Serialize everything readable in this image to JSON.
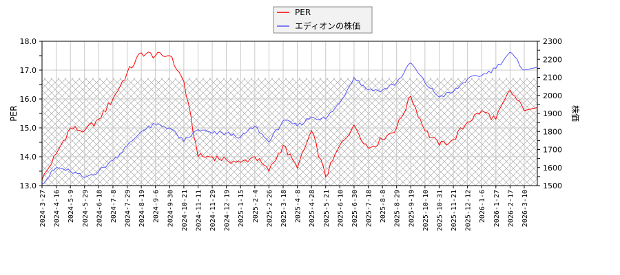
{
  "legend": {
    "items": [
      {
        "label": "PER",
        "color": "#ff0000"
      },
      {
        "label": "エディオンの株価",
        "color": "#5555ff"
      }
    ]
  },
  "axes": {
    "left": {
      "title": "PER",
      "ticks": [
        "13.0",
        "14.0",
        "15.0",
        "16.0",
        "17.0",
        "18.0"
      ]
    },
    "right": {
      "title": "株価",
      "ticks": [
        "1500",
        "1600",
        "1700",
        "1800",
        "1900",
        "2000",
        "2100",
        "2200",
        "2300"
      ]
    }
  },
  "chart_data": {
    "type": "line",
    "title": "",
    "xlabel": "",
    "ylabel": "PER",
    "y2label": "株価",
    "ylim": [
      13.0,
      18.0
    ],
    "y2lim": [
      1500,
      2300
    ],
    "grid": true,
    "legend_position": "top-center",
    "shaded_band": {
      "axis": "left",
      "from": 13.0,
      "to": 16.72,
      "pattern": "crosshatch"
    },
    "categories": [
      "2024-3-27",
      "2024-4-16",
      "2024-5-9",
      "2024-5-29",
      "2024-6-18",
      "2024-7-8",
      "2024-7-29",
      "2024-8-19",
      "2024-9-6",
      "2024-9-30",
      "2024-10-21",
      "2024-11-11",
      "2024-11-29",
      "2024-12-19",
      "2025-1-15",
      "2025-2-4",
      "2025-2-26",
      "2025-3-18",
      "2025-4-8",
      "2025-4-28",
      "2025-5-21",
      "2025-6-10",
      "2025-6-30",
      "2025-7-18",
      "2025-8-8",
      "2025-8-29",
      "2025-9-19",
      "2025-10-10",
      "2025-10-31",
      "2025-11-21",
      "2025-12-12",
      "2026-1-6",
      "2026-1-27",
      "2026-2-17",
      "2026-3-10"
    ],
    "series": [
      {
        "name": "PER",
        "axis": "left",
        "color": "#ff0000",
        "values": [
          13.2,
          14.1,
          15.0,
          14.9,
          15.3,
          16.0,
          16.9,
          17.6,
          17.5,
          17.5,
          16.6,
          14.0,
          14.0,
          13.9,
          13.8,
          14.0,
          13.5,
          14.4,
          13.6,
          14.9,
          13.3,
          14.4,
          15.1,
          14.3,
          14.6,
          15.0,
          16.1,
          14.9,
          14.4,
          14.6,
          15.2,
          15.6,
          15.3,
          16.3,
          15.6
        ],
        "x": [
          0,
          1,
          2,
          3,
          4,
          5,
          6,
          7,
          8,
          9,
          10,
          11,
          12,
          13,
          14,
          15,
          16,
          17,
          18,
          19,
          20,
          21,
          22,
          23,
          24,
          25,
          26,
          27,
          28,
          29,
          30,
          31,
          32,
          33,
          34
        ]
      },
      {
        "name": "エディオンの株価",
        "axis": "right",
        "color": "#5555ff",
        "values": [
          1510,
          1600,
          1580,
          1545,
          1580,
          1640,
          1720,
          1800,
          1840,
          1820,
          1745,
          1810,
          1790,
          1790,
          1770,
          1830,
          1740,
          1860,
          1830,
          1880,
          1870,
          1960,
          2100,
          2030,
          2030,
          2070,
          2180,
          2070,
          1990,
          2020,
          2090,
          2110,
          2150,
          2240,
          2140
        ]
      }
    ]
  }
}
